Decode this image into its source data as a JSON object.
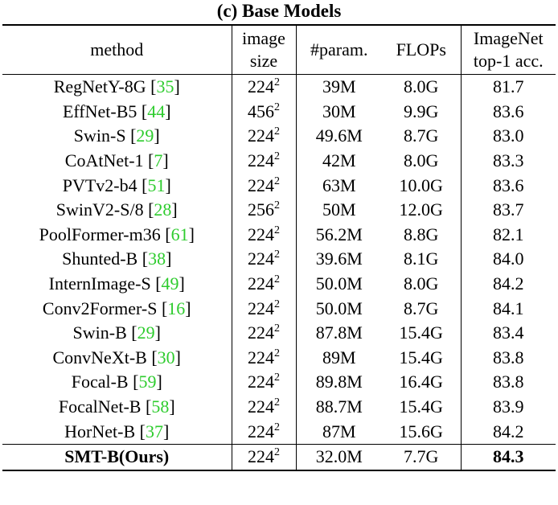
{
  "caption": "(c) Base Models",
  "headers": {
    "method": "method",
    "image_size_line1": "image",
    "image_size_line2": "size",
    "params": "#param.",
    "flops": "FLOPs",
    "acc_line1": "ImageNet",
    "acc_line2": "top-1 acc."
  },
  "rows": [
    {
      "method": "RegNetY-8G",
      "cite": "35",
      "size": "224",
      "sup": "2",
      "params": "39M",
      "flops": "8.0G",
      "acc": "81.7"
    },
    {
      "method": "EffNet-B5",
      "cite": "44",
      "size": "456",
      "sup": "2",
      "params": "30M",
      "flops": "9.9G",
      "acc": "83.6"
    },
    {
      "method": "Swin-S",
      "cite": "29",
      "size": "224",
      "sup": "2",
      "params": "49.6M",
      "flops": "8.7G",
      "acc": "83.0"
    },
    {
      "method": "CoAtNet-1",
      "cite": "7",
      "size": "224",
      "sup": "2",
      "params": "42M",
      "flops": "8.0G",
      "acc": "83.3"
    },
    {
      "method": "PVTv2-b4",
      "cite": "51",
      "size": "224",
      "sup": "2",
      "params": "63M",
      "flops": "10.0G",
      "acc": "83.6"
    },
    {
      "method": "SwinV2-S/8",
      "cite": "28",
      "size": "256",
      "sup": "2",
      "params": "50M",
      "flops": "12.0G",
      "acc": "83.7"
    },
    {
      "method": "PoolFormer-m36",
      "cite": "61",
      "size": "224",
      "sup": "2",
      "params": "56.2M",
      "flops": "8.8G",
      "acc": "82.1"
    },
    {
      "method": "Shunted-B",
      "cite": "38",
      "size": "224",
      "sup": "2",
      "params": "39.6M",
      "flops": "8.1G",
      "acc": "84.0"
    },
    {
      "method": "InternImage-S",
      "cite": "49",
      "size": "224",
      "sup": "2",
      "params": "50.0M",
      "flops": "8.0G",
      "acc": "84.2"
    },
    {
      "method": "Conv2Former-S",
      "cite": "16",
      "size": "224",
      "sup": "2",
      "params": "50.0M",
      "flops": "8.7G",
      "acc": "84.1"
    },
    {
      "method": "Swin-B",
      "cite": "29",
      "size": "224",
      "sup": "2",
      "params": "87.8M",
      "flops": "15.4G",
      "acc": "83.4"
    },
    {
      "method": "ConvNeXt-B",
      "cite": "30",
      "size": "224",
      "sup": "2",
      "params": "89M",
      "flops": "15.4G",
      "acc": "83.8"
    },
    {
      "method": "Focal-B",
      "cite": "59",
      "size": "224",
      "sup": "2",
      "params": "89.8M",
      "flops": "16.4G",
      "acc": "83.8"
    },
    {
      "method": "FocalNet-B",
      "cite": "58",
      "size": "224",
      "sup": "2",
      "params": "88.7M",
      "flops": "15.4G",
      "acc": "83.9"
    },
    {
      "method": "HorNet-B",
      "cite": "37",
      "size": "224",
      "sup": "2",
      "params": "87M",
      "flops": "15.6G",
      "acc": "84.2"
    }
  ],
  "ours": {
    "method": "SMT-B(Ours)",
    "size": "224",
    "sup": "2",
    "params": "32.0M",
    "flops": "7.7G",
    "acc": "84.3"
  },
  "colors": {
    "citation": "#2ecc2e"
  }
}
